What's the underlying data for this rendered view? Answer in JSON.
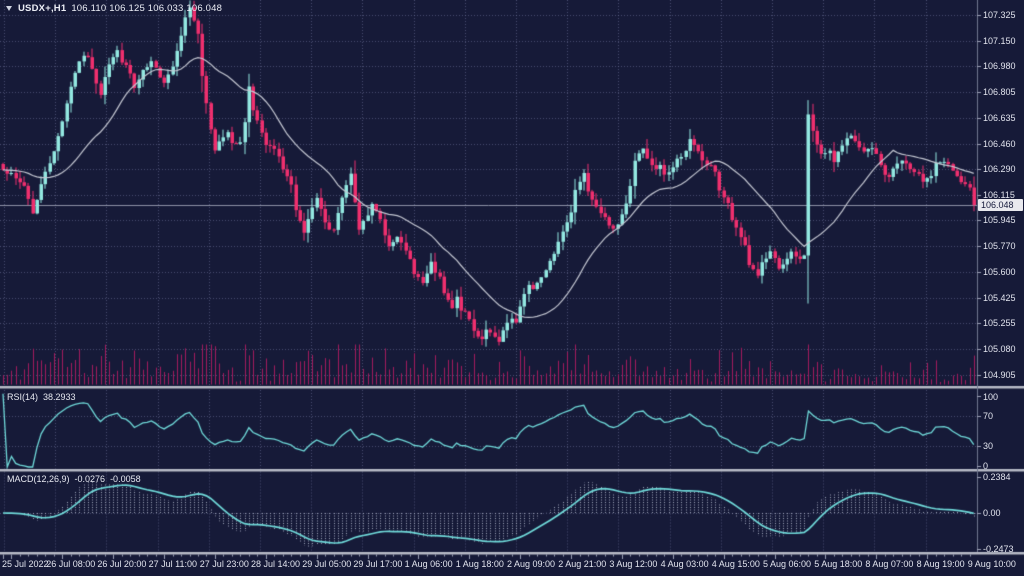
{
  "title": {
    "symbol": "USDX+,H1",
    "ohlc": "106.110 106.125 106.033 106.048"
  },
  "indicators": {
    "rsi": {
      "label": "RSI(14)",
      "value": "38.2933"
    },
    "macd": {
      "label": "MACD(12,26,9)",
      "value_main": "-0.0276",
      "value_signal": "-0.0058"
    }
  },
  "colors": {
    "background": "#161a38",
    "bull": "#93e8e1",
    "bear": "#ef2f6e",
    "volume": "#a31b5e",
    "ma_line": "#c3c6d1",
    "indicator_line": "#6fd9d9",
    "histogram": "#c3c8da",
    "grid": "#6e74a0",
    "separator": "#b7bac6",
    "axis_line": "#70768f",
    "axis_text": "#e2e4ee",
    "price_line": "#8d91a6",
    "price_tag_bg": "#e9e9ee",
    "price_tag_text": "#14183a"
  },
  "chart_data": {
    "type": "candlestick",
    "title": "USDX+,H1  106.110 106.125 106.033 106.048",
    "symbol": "USDX+",
    "timeframe": "H1",
    "ohlc_display": {
      "open": "106.110",
      "high": "106.125",
      "low": "106.033",
      "close": "106.048"
    },
    "current_price": "106.048",
    "ylim": [
      104.84,
      107.43
    ],
    "y_axis_labels": [
      "107.325",
      "107.150",
      "106.980",
      "106.805",
      "106.635",
      "106.460",
      "106.290",
      "106.115",
      "105.945",
      "105.770",
      "105.600",
      "105.425",
      "105.255",
      "105.080",
      "104.905"
    ],
    "x_labels": [
      "25 Jul 2022",
      "26 Jul 08:00",
      "26 Jul 20:00",
      "27 Jul 11:00",
      "27 Jul 23:00",
      "28 Jul 14:00",
      "29 Jul 05:00",
      "29 Jul 17:00",
      "1 Aug 06:00",
      "1 Aug 18:00",
      "2 Aug 09:00",
      "2 Aug 21:00",
      "3 Aug 12:00",
      "4 Aug 03:00",
      "4 Aug 15:00",
      "5 Aug 06:00",
      "5 Aug 18:00",
      "8 Aug 07:00",
      "8 Aug 19:00",
      "9 Aug 10:00"
    ],
    "rsi_scale_labels": [
      "100",
      "70",
      "30",
      "0"
    ],
    "rsi_scale_values": [
      100,
      70,
      30,
      0
    ],
    "macd_scale_labels": [
      "0.2384",
      "0.00",
      "-0.2473"
    ],
    "macd_scale_values": [
      0.2384,
      0,
      -0.2473
    ],
    "n_bars": 230,
    "render_seed": 7,
    "close_anchors": [
      [
        0,
        106.3
      ],
      [
        3,
        106.22
      ],
      [
        5,
        106.18
      ],
      [
        7,
        106.0
      ],
      [
        8,
        106.08
      ],
      [
        10,
        106.28
      ],
      [
        12,
        106.4
      ],
      [
        14,
        106.62
      ],
      [
        16,
        106.85
      ],
      [
        18,
        107.02
      ],
      [
        20,
        107.05
      ],
      [
        21,
        106.95
      ],
      [
        23,
        106.8
      ],
      [
        24,
        106.92
      ],
      [
        25,
        107.0
      ],
      [
        27,
        107.08
      ],
      [
        28,
        107.02
      ],
      [
        30,
        106.93
      ],
      [
        31,
        106.83
      ],
      [
        33,
        106.94
      ],
      [
        35,
        107.0
      ],
      [
        37,
        106.92
      ],
      [
        38,
        106.88
      ],
      [
        40,
        106.98
      ],
      [
        41,
        107.1
      ],
      [
        43,
        107.3
      ],
      [
        44,
        107.38
      ],
      [
        46,
        107.2
      ],
      [
        47,
        106.9
      ],
      [
        49,
        106.55
      ],
      [
        50,
        106.42
      ],
      [
        51,
        106.48
      ],
      [
        53,
        106.55
      ],
      [
        54,
        106.45
      ],
      [
        56,
        106.48
      ],
      [
        57,
        106.6
      ],
      [
        58,
        106.85
      ],
      [
        59,
        106.7
      ],
      [
        61,
        106.52
      ],
      [
        62,
        106.45
      ],
      [
        64,
        106.42
      ],
      [
        66,
        106.3
      ],
      [
        68,
        106.18
      ],
      [
        69,
        106.0
      ],
      [
        71,
        105.85
      ],
      [
        72,
        105.95
      ],
      [
        74,
        106.08
      ],
      [
        75,
        106.02
      ],
      [
        76,
        105.92
      ],
      [
        78,
        105.88
      ],
      [
        79,
        106.0
      ],
      [
        81,
        106.18
      ],
      [
        82,
        106.25
      ],
      [
        83,
        106.05
      ],
      [
        84,
        105.88
      ],
      [
        86,
        105.98
      ],
      [
        87,
        106.05
      ],
      [
        89,
        105.95
      ],
      [
        90,
        105.85
      ],
      [
        91,
        105.78
      ],
      [
        93,
        105.85
      ],
      [
        94,
        105.78
      ],
      [
        96,
        105.68
      ],
      [
        97,
        105.6
      ],
      [
        99,
        105.52
      ],
      [
        100,
        105.58
      ],
      [
        101,
        105.65
      ],
      [
        103,
        105.55
      ],
      [
        104,
        105.45
      ],
      [
        106,
        105.35
      ],
      [
        107,
        105.42
      ],
      [
        108,
        105.35
      ],
      [
        110,
        105.28
      ],
      [
        111,
        105.2
      ],
      [
        113,
        105.15
      ],
      [
        114,
        105.22
      ],
      [
        115,
        105.18
      ],
      [
        117,
        105.12
      ],
      [
        118,
        105.2
      ],
      [
        120,
        105.28
      ],
      [
        121,
        105.25
      ],
      [
        123,
        105.45
      ],
      [
        124,
        105.52
      ],
      [
        125,
        105.48
      ],
      [
        127,
        105.55
      ],
      [
        128,
        105.62
      ],
      [
        130,
        105.72
      ],
      [
        131,
        105.8
      ],
      [
        132,
        105.88
      ],
      [
        134,
        106.0
      ],
      [
        135,
        106.15
      ],
      [
        137,
        106.28
      ],
      [
        138,
        106.15
      ],
      [
        140,
        106.05
      ],
      [
        141,
        105.98
      ],
      [
        142,
        105.95
      ],
      [
        144,
        105.9
      ],
      [
        145,
        105.92
      ],
      [
        147,
        106.05
      ],
      [
        148,
        106.18
      ],
      [
        149,
        106.35
      ],
      [
        151,
        106.42
      ],
      [
        152,
        106.35
      ],
      [
        154,
        106.28
      ],
      [
        155,
        106.32
      ],
      [
        156,
        106.25
      ],
      [
        158,
        106.3
      ],
      [
        159,
        106.35
      ],
      [
        161,
        106.42
      ],
      [
        162,
        106.48
      ],
      [
        164,
        106.4
      ],
      [
        165,
        106.35
      ],
      [
        166,
        106.32
      ],
      [
        168,
        106.28
      ],
      [
        169,
        106.15
      ],
      [
        171,
        106.05
      ],
      [
        172,
        105.95
      ],
      [
        173,
        105.88
      ],
      [
        175,
        105.78
      ],
      [
        176,
        105.65
      ],
      [
        178,
        105.58
      ],
      [
        179,
        105.65
      ],
      [
        181,
        105.72
      ],
      [
        182,
        105.68
      ],
      [
        183,
        105.62
      ],
      [
        185,
        105.68
      ],
      [
        186,
        105.72
      ],
      [
        188,
        105.68
      ],
      [
        189,
        105.72
      ],
      [
        190,
        106.65
      ],
      [
        192,
        106.45
      ],
      [
        193,
        106.38
      ],
      [
        195,
        106.42
      ],
      [
        196,
        106.35
      ],
      [
        197,
        106.4
      ],
      [
        199,
        106.48
      ],
      [
        200,
        106.52
      ],
      [
        202,
        106.45
      ],
      [
        203,
        106.4
      ],
      [
        205,
        106.42
      ],
      [
        206,
        106.38
      ],
      [
        207,
        106.3
      ],
      [
        209,
        106.22
      ],
      [
        210,
        106.3
      ],
      [
        212,
        106.35
      ],
      [
        213,
        106.32
      ],
      [
        214,
        106.28
      ],
      [
        216,
        106.25
      ],
      [
        217,
        106.2
      ],
      [
        219,
        106.25
      ],
      [
        220,
        106.32
      ],
      [
        222,
        106.35
      ],
      [
        224,
        106.28
      ],
      [
        226,
        106.2
      ],
      [
        228,
        106.15
      ],
      [
        229,
        106.048
      ]
    ],
    "indicator_settings": {
      "ma": {
        "type": "SMA",
        "period": 21
      },
      "rsi": {
        "period": 14,
        "last": 38.2933,
        "levels": [
          70,
          30
        ]
      },
      "macd": {
        "fast": 12,
        "slow": 26,
        "signal": 9,
        "last_main": -0.0276,
        "last_signal": -0.0058,
        "axis_max": 0.2384,
        "axis_min": -0.2473
      },
      "volume": true
    }
  }
}
